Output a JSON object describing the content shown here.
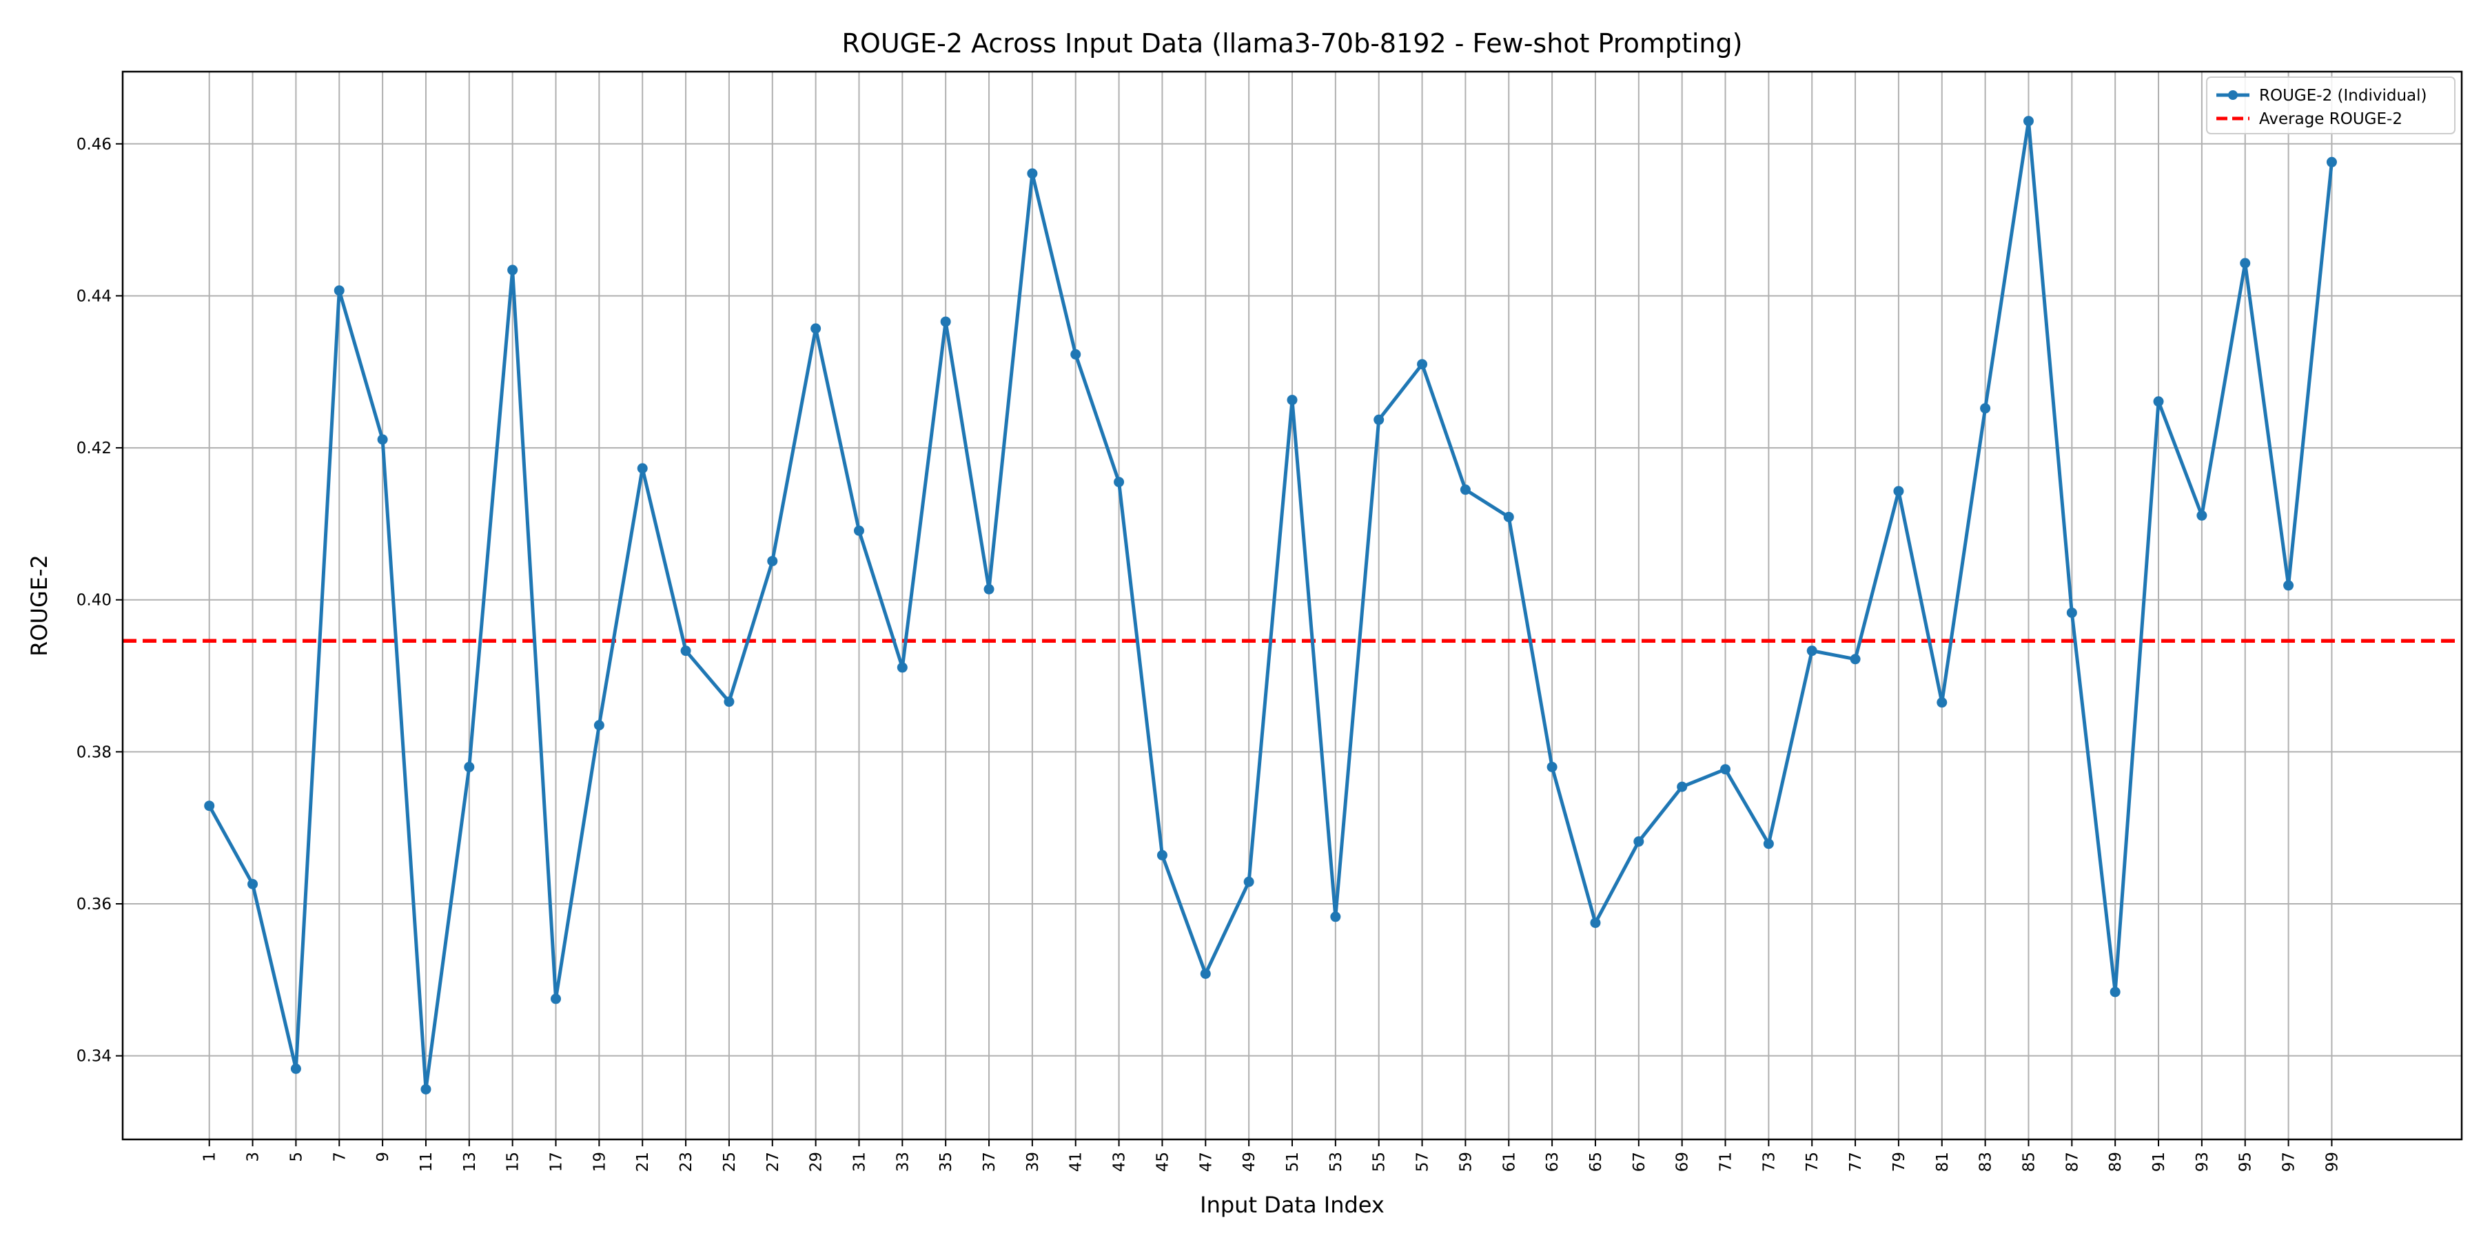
{
  "chart_data": {
    "type": "line",
    "title": "ROUGE-2 Across Input Data (llama3-70b-8192 - Few-shot Prompting)",
    "xlabel": "Input Data Index",
    "ylabel": "ROUGE-2",
    "grid": true,
    "legend_position": "top-right",
    "xlim": [
      -3,
      105
    ],
    "ylim": [
      0.329,
      0.4695
    ],
    "x": [
      1,
      3,
      5,
      7,
      9,
      11,
      13,
      15,
      17,
      19,
      21,
      23,
      25,
      27,
      29,
      31,
      33,
      35,
      37,
      39,
      41,
      43,
      45,
      47,
      49,
      51,
      53,
      55,
      57,
      59,
      61,
      63,
      65,
      67,
      69,
      71,
      73,
      75,
      77,
      79,
      81,
      83,
      85,
      87,
      89,
      91,
      93,
      95,
      97,
      99
    ],
    "x_tick_labels": [
      "1",
      "3",
      "5",
      "7",
      "9",
      "11",
      "13",
      "15",
      "17",
      "19",
      "21",
      "23",
      "25",
      "27",
      "29",
      "31",
      "33",
      "35",
      "37",
      "39",
      "41",
      "43",
      "45",
      "47",
      "49",
      "51",
      "53",
      "55",
      "57",
      "59",
      "61",
      "63",
      "65",
      "67",
      "69",
      "71",
      "73",
      "75",
      "77",
      "79",
      "81",
      "83",
      "85",
      "87",
      "89",
      "91",
      "93",
      "95",
      "97",
      "99"
    ],
    "y_ticks": [
      0.34,
      0.36,
      0.38,
      0.4,
      0.42,
      0.44,
      0.46
    ],
    "y_tick_labels": [
      "0.34",
      "0.36",
      "0.38",
      "0.40",
      "0.42",
      "0.44",
      "0.46"
    ],
    "series": [
      {
        "name": "ROUGE-2 (Individual)",
        "color": "#1f77b4",
        "style": "line-with-markers",
        "values": [
          0.3729,
          0.3626,
          0.3383,
          0.4407,
          0.4211,
          0.3356,
          0.378,
          0.4434,
          0.3475,
          0.3835,
          0.4173,
          0.3933,
          0.3866,
          0.4051,
          0.4357,
          0.4091,
          0.3911,
          0.4366,
          0.4014,
          0.4561,
          0.4323,
          0.4155,
          0.3664,
          0.3508,
          0.3629,
          0.4263,
          0.3583,
          0.4237,
          0.431,
          0.4145,
          0.4109,
          0.378,
          0.3575,
          0.3682,
          0.3754,
          0.3777,
          0.3679,
          0.3933,
          0.3922,
          0.4143,
          0.3865,
          0.4252,
          0.463,
          0.3983,
          0.3484,
          0.4261,
          0.4111,
          0.4443,
          0.4019,
          0.4576
        ]
      },
      {
        "name": "Average ROUGE-2",
        "color": "#ff0000",
        "style": "dashed",
        "value": 0.3946
      }
    ]
  }
}
